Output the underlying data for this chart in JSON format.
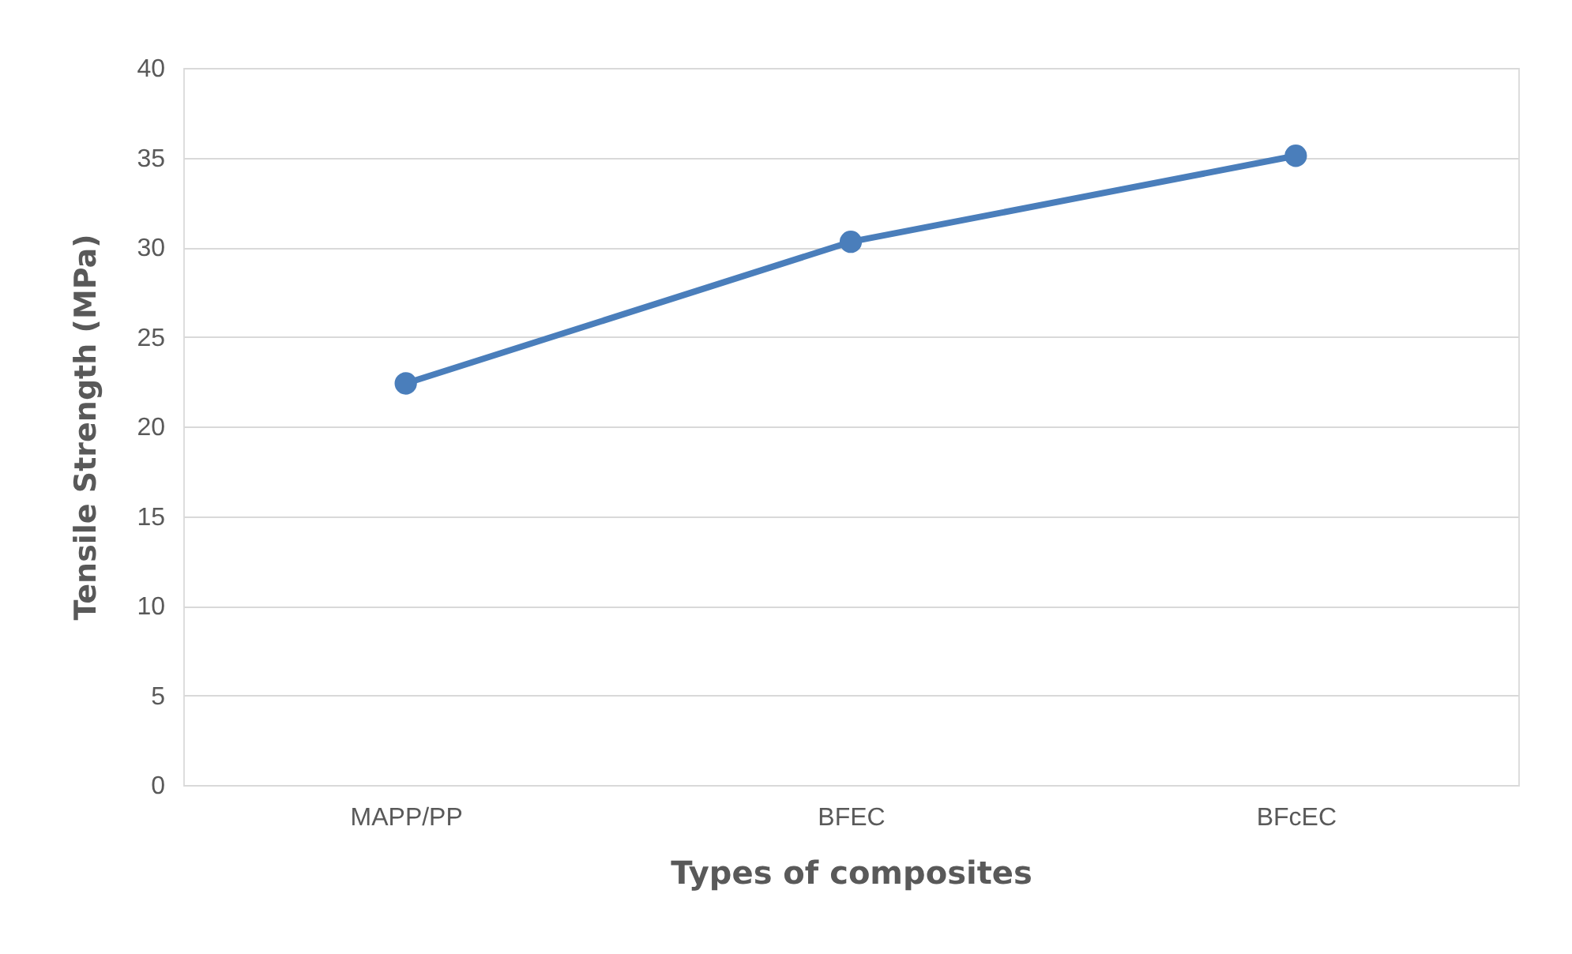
{
  "chart_data": {
    "type": "line",
    "xlabel": "Types of composites",
    "ylabel": "Tensile Strength (MPa)",
    "categories": [
      "MAPP/PP",
      "BFEC",
      "BFcEC"
    ],
    "series": [
      {
        "color": "#4a7ebb",
        "values": [
          22.4,
          30.3,
          35.1
        ]
      }
    ],
    "ylim": [
      0,
      40
    ],
    "yticks": [
      0,
      5,
      10,
      15,
      20,
      25,
      30,
      35,
      40
    ],
    "grid": "y",
    "marker": "circle",
    "line_style": "solid"
  }
}
